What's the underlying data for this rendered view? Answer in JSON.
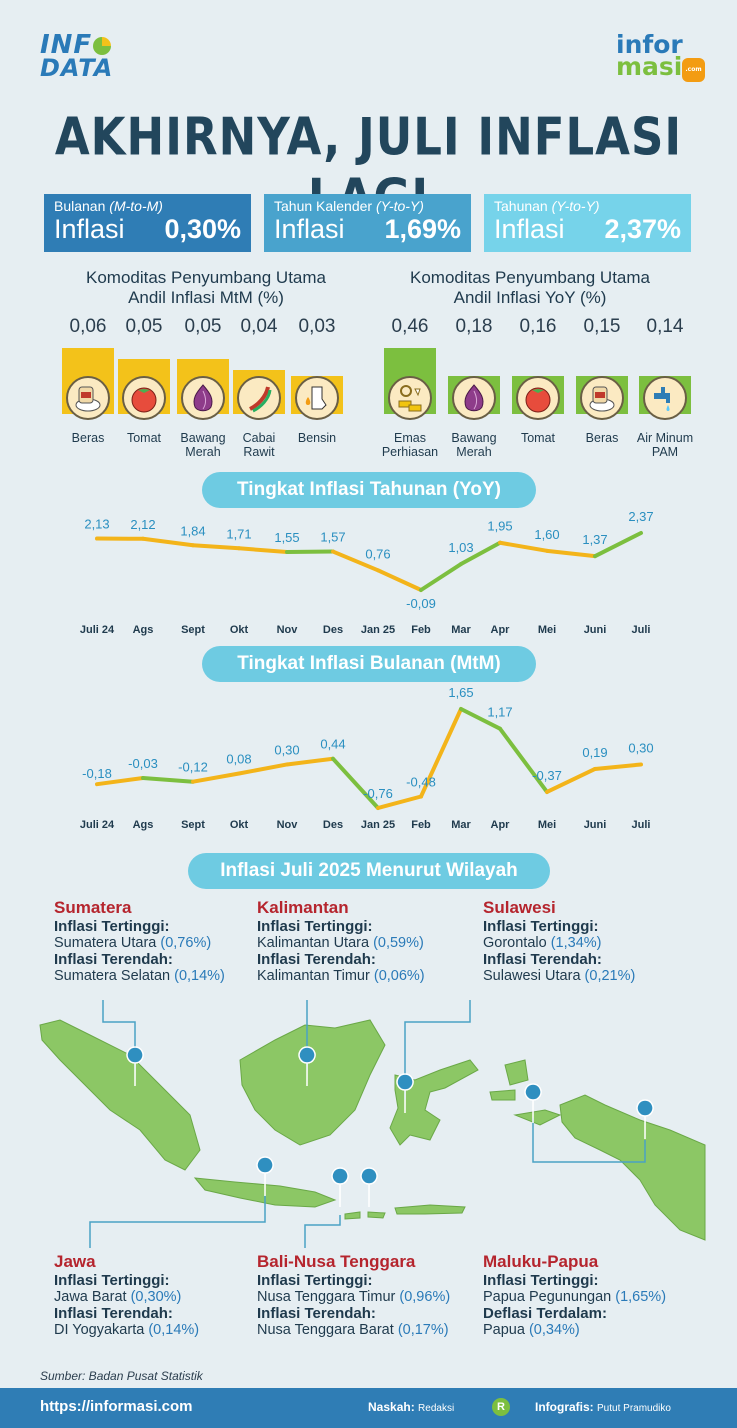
{
  "logo_left": {
    "line1": "INF",
    "line2": "DATA"
  },
  "logo_right": {
    "line1a": "infor",
    "line2": "masi",
    "badge": ".com"
  },
  "title": "AKHIRNYA, JULI INFLASI LAGI",
  "stats": [
    {
      "label": "Bulanan",
      "label_italic": "(M-to-M)",
      "word": "Inflasi",
      "value": "0,30%"
    },
    {
      "label": "Tahun Kalender",
      "label_italic": "(Y-to-Y)",
      "word": "Inflasi",
      "value": "1,69%"
    },
    {
      "label": "Tahunan",
      "label_italic": "(Y-to-Y)",
      "word": "Inflasi",
      "value": "2,37%"
    }
  ],
  "mtm_commodities": {
    "heading_1": "Komoditas Penyumbang Utama",
    "heading_2": "Andil Inflasi MtM (%)",
    "values": [
      "0,06",
      "0,05",
      "0,05",
      "0,04",
      "0,03"
    ],
    "numbers": [
      0.06,
      0.05,
      0.05,
      0.04,
      0.03
    ],
    "labels": [
      [
        "Beras"
      ],
      [
        "Tomat"
      ],
      [
        "Bawang",
        "Merah"
      ],
      [
        "Cabai",
        "Rawit"
      ],
      [
        "Bensin"
      ]
    ],
    "icons": [
      "rice-icon",
      "tomato-icon",
      "onion-icon",
      "chili-icon",
      "fuel-nozzle-icon"
    ],
    "color": "#f3c21a"
  },
  "yoy_commodities": {
    "heading_1": "Komoditas Penyumbang Utama",
    "heading_2": "Andil Inflasi YoY (%)",
    "values": [
      "0,46",
      "0,18",
      "0,16",
      "0,15",
      "0,14"
    ],
    "numbers": [
      0.46,
      0.18,
      0.16,
      0.15,
      0.14
    ],
    "labels": [
      [
        "Emas",
        "Perhiasan"
      ],
      [
        "Bawang",
        "Merah"
      ],
      [
        "Tomat"
      ],
      [
        "Beras"
      ],
      [
        "Air Minum",
        "PAM"
      ]
    ],
    "icons": [
      "gold-jewelry-icon",
      "onion-icon",
      "tomato-icon",
      "rice-icon",
      "water-tap-icon"
    ],
    "color": "#7cbf3f"
  },
  "yoy_pill": "Tingkat Inflasi Tahunan (YoY)",
  "mtm_pill": "Tingkat Inflasi Bulanan (MtM)",
  "region_pill": "Inflasi Juli 2025 Menurut Wilayah",
  "chart_data": [
    {
      "type": "line",
      "title": "Tingkat Inflasi Tahunan (YoY)",
      "categories": [
        "Juli 24",
        "Ags",
        "Sept",
        "Okt",
        "Nov",
        "Des",
        "Jan 25",
        "Feb",
        "Mar",
        "Apr",
        "Mei",
        "Juni",
        "Juli"
      ],
      "values": [
        2.13,
        2.12,
        1.84,
        1.71,
        1.55,
        1.57,
        0.76,
        -0.09,
        1.03,
        1.95,
        1.6,
        1.37,
        2.37
      ],
      "labels": [
        "2,13",
        "2,12",
        "1,84",
        "1,71",
        "1,55",
        "1,57",
        "0,76",
        "-0,09",
        "1,03",
        "1,95",
        "1,60",
        "1,37",
        "2,37"
      ],
      "colors": {
        "up": "#7cbf3f",
        "down": "#f3b41a"
      }
    },
    {
      "type": "line",
      "title": "Tingkat Inflasi Bulanan (MtM)",
      "categories": [
        "Juli 24",
        "Ags",
        "Sept",
        "Okt",
        "Nov",
        "Des",
        "Jan 25",
        "Feb",
        "Mar",
        "Apr",
        "Mei",
        "Juni",
        "Juli"
      ],
      "values": [
        -0.18,
        -0.03,
        -0.12,
        0.08,
        0.3,
        0.44,
        -0.76,
        -0.48,
        1.65,
        1.17,
        -0.37,
        0.19,
        0.3
      ],
      "labels": [
        "-0,18",
        "-0,03",
        "-0,12",
        "0,08",
        "0,30",
        "0,44",
        "-0,76",
        "-0,48",
        "1,65",
        "1,17",
        "-0,37",
        "0,19",
        "0,30"
      ],
      "colors": {
        "up": "#f3b41a",
        "down": "#7cbf3f"
      }
    }
  ],
  "regions": [
    {
      "name": "Sumatera",
      "hi_label": "Inflasi Tertinggi:",
      "hi_place": "Sumatera Utara",
      "hi_val": "(0,76%)",
      "lo_label": "Inflasi Terendah:",
      "lo_place": "Sumatera Selatan",
      "lo_val": "(0,14%)"
    },
    {
      "name": "Kalimantan",
      "hi_label": "Inflasi Tertinggi:",
      "hi_place": "Kalimantan Utara",
      "hi_val": "(0,59%)",
      "lo_label": "Inflasi Terendah:",
      "lo_place": "Kalimantan Timur",
      "lo_val": "(0,06%)"
    },
    {
      "name": "Sulawesi",
      "hi_label": "Inflasi Tertinggi:",
      "hi_place": "Gorontalo",
      "hi_val": "(1,34%)",
      "lo_label": "Inflasi Terendah:",
      "lo_place": "Sulawesi Utara",
      "lo_val": "(0,21%)"
    },
    {
      "name": "Jawa",
      "hi_label": "Inflasi Tertinggi:",
      "hi_place": "Jawa Barat",
      "hi_val": "(0,30%)",
      "lo_label": "Inflasi Terendah:",
      "lo_place": "DI Yogyakarta",
      "lo_val": "(0,14%)"
    },
    {
      "name": "Bali-Nusa Tenggara",
      "hi_label": "Inflasi Tertinggi:",
      "hi_place": "Nusa Tenggara Timur",
      "hi_val": "(0,96%)",
      "lo_label": "Inflasi Terendah:",
      "lo_place": "Nusa Tenggara Barat",
      "lo_val": "(0,17%)"
    },
    {
      "name": "Maluku-Papua",
      "hi_label": "Inflasi Tertinggi:",
      "hi_place": "Papua Pegunungan",
      "hi_val": "(1,65%)",
      "lo_label": "Deflasi Terdalam:",
      "lo_place": "Papua",
      "lo_val": "(0,34%)"
    }
  ],
  "source": "Sumber: Badan Pusat Statistik",
  "footer": {
    "url": "https://informasi.com",
    "naskah_label": "Naskah:",
    "naskah_name": "Redaksi",
    "icon_letter": "R",
    "infografis_label": "Infografis:",
    "infografis_name": "Putut Pramudiko"
  }
}
